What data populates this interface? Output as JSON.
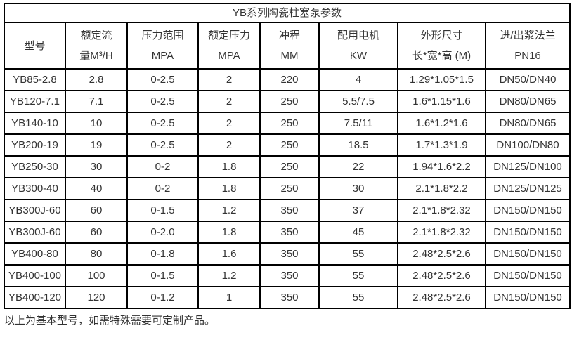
{
  "title": "YB系列陶瓷柱塞泵参数",
  "table": {
    "columns": [
      {
        "line1": "型号",
        "line2": ""
      },
      {
        "line1": "额定流",
        "line2": "量M³/H"
      },
      {
        "line1": "压力范围",
        "line2": "MPA"
      },
      {
        "line1": "额定压力",
        "line2": "MPA"
      },
      {
        "line1": "冲程",
        "line2": "MM"
      },
      {
        "line1": "配用电机",
        "line2": "KW"
      },
      {
        "line1": "外形尺寸",
        "line2": "长*宽*高 (M)"
      },
      {
        "line1": "进/出浆法兰",
        "line2": "PN16"
      }
    ],
    "rows": [
      [
        "YB85-2.8",
        "2.8",
        "0-2.5",
        "2",
        "220",
        "4",
        "1.29*1.05*1.5",
        "DN50/DN40"
      ],
      [
        "YB120-7.1",
        "7.1",
        "0-2.5",
        "2",
        "250",
        "5.5/7.5",
        "1.6*1.15*1.6",
        "DN80/DN65"
      ],
      [
        "YB140-10",
        "10",
        "0-2.5",
        "2",
        "250",
        "7.5/11",
        "1.6*1.2*1.6",
        "DN80/DN65"
      ],
      [
        "YB200-19",
        "19",
        "0-2.5",
        "2",
        "250",
        "18.5",
        "1.7*1.3*1.9",
        "DN100/DN80"
      ],
      [
        "YB250-30",
        "30",
        "0-2",
        "1.8",
        "250",
        "22",
        "1.94*1.6*2.2",
        "DN125/DN100"
      ],
      [
        "YB300-40",
        "40",
        "0-2",
        "1.8",
        "250",
        "30",
        "2.1*1.8*2.2",
        "DN125/DN125"
      ],
      [
        "YB300J-60",
        "60",
        "0-1.5",
        "1.2",
        "350",
        "37",
        "2.1*1.8*2.32",
        "DN150/DN150"
      ],
      [
        "YB300J-60",
        "60",
        "0-2.0",
        "1.8",
        "350",
        "45",
        "2.1*1.8*2.32",
        "DN150/DN150"
      ],
      [
        "YB400-80",
        "80",
        "0-1.8",
        "1.6",
        "350",
        "55",
        "2.48*2.5*2.6",
        "DN150/DN150"
      ],
      [
        "YB400-100",
        "100",
        "0-1.5",
        "1.2",
        "350",
        "55",
        "2.48*2.5*2.6",
        "DN150/DN150"
      ],
      [
        "YB400-120",
        "120",
        "0-1.2",
        "1",
        "350",
        "55",
        "2.48*2.5*2.6",
        "DN150/DN150"
      ]
    ]
  },
  "footer_note": "以上为基本型号，如需特殊需要可定制产品。",
  "colors": {
    "border": "#000000",
    "text": "#333333",
    "background": "#ffffff"
  }
}
